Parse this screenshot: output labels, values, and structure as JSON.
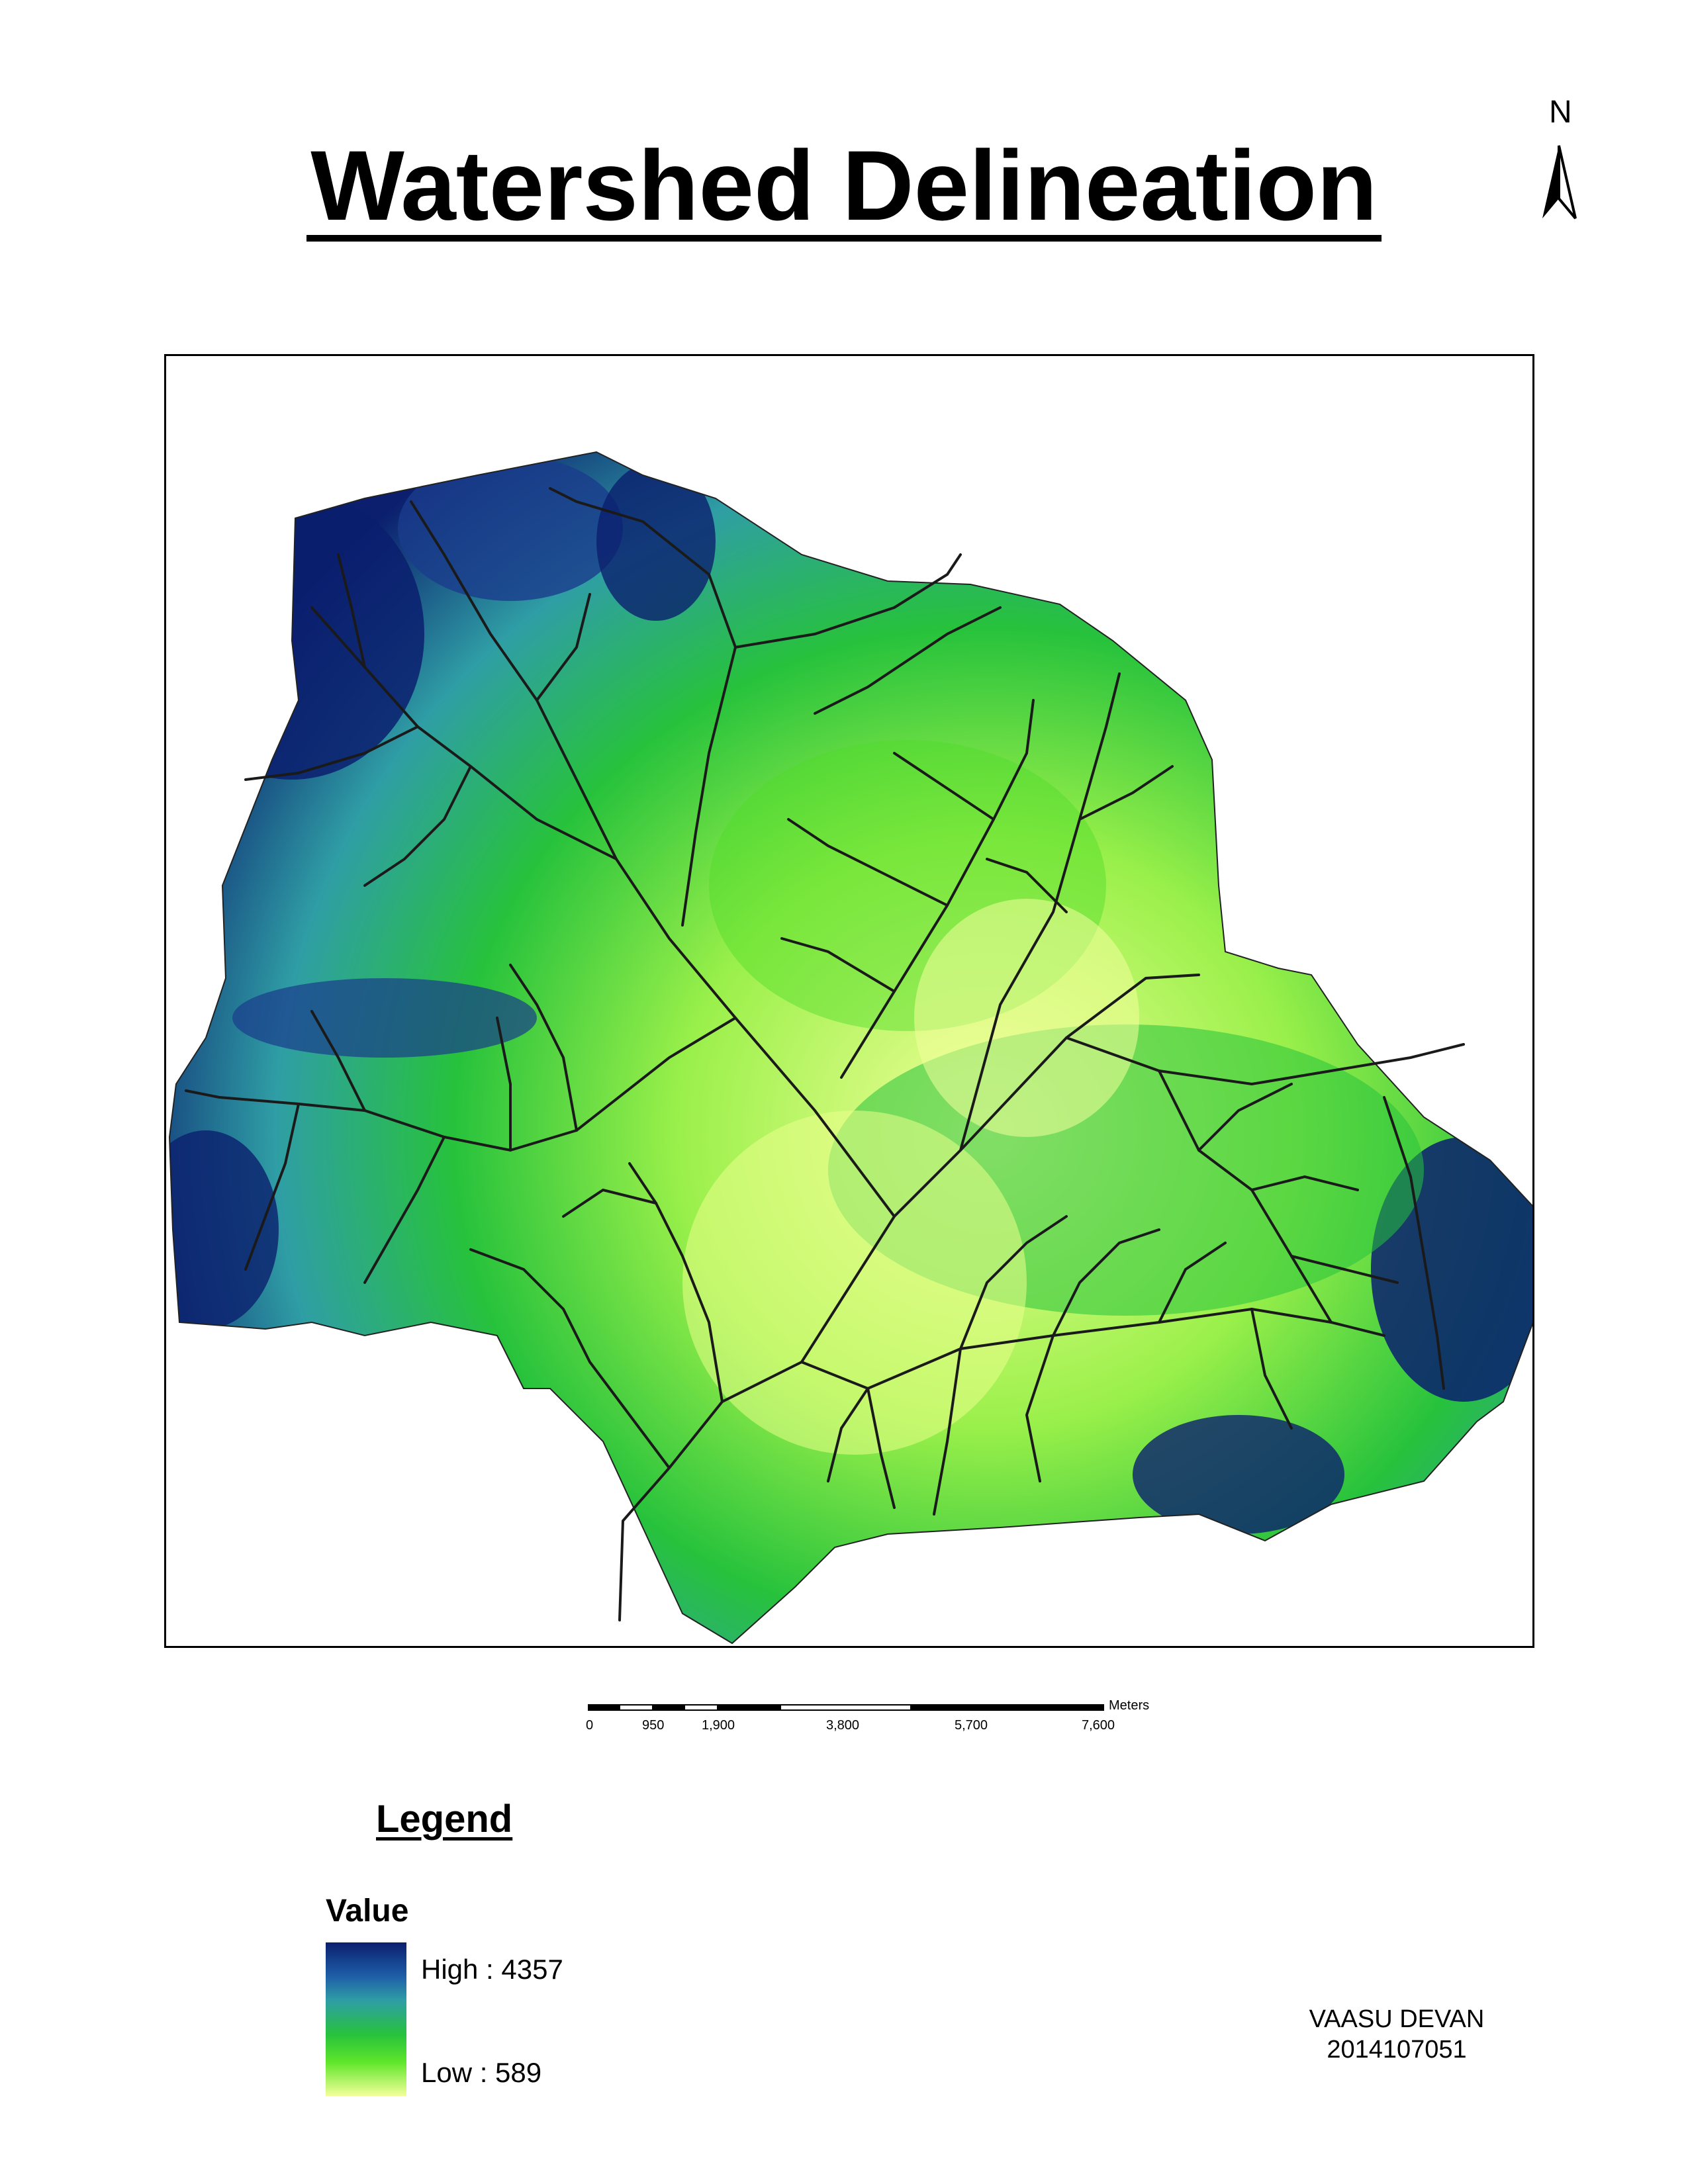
{
  "title": "Watershed Delineation",
  "north_arrow": {
    "letter": "N",
    "icon": "north-arrow-icon"
  },
  "map": {
    "description_colors": {
      "high": "#0b1f6e",
      "mid": "#27c23c",
      "low": "#f2ff9a",
      "stream": "#1a1a1a"
    }
  },
  "scale_bar": {
    "unit": "Meters",
    "ticks": [
      "0",
      "950",
      "1,900",
      "3,800",
      "5,700",
      "7,600"
    ]
  },
  "legend": {
    "title": "Legend",
    "heading": "Value",
    "high_label": "High : 4357",
    "low_label": "Low : 589"
  },
  "author": {
    "name": "VAASU DEVAN",
    "id": "2014107051"
  }
}
